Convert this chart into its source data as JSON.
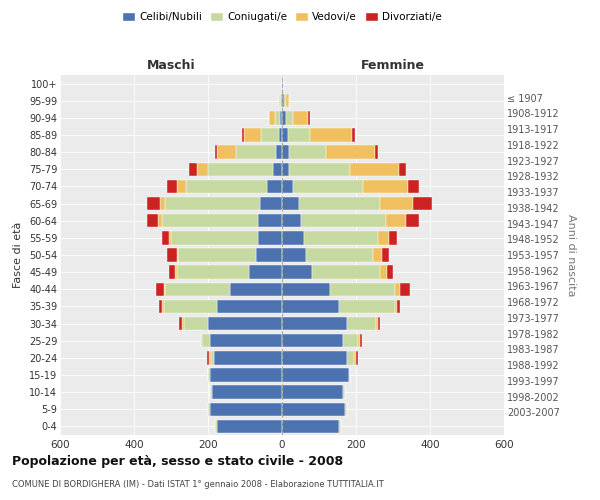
{
  "age_groups": [
    "0-4",
    "5-9",
    "10-14",
    "15-19",
    "20-24",
    "25-29",
    "30-34",
    "35-39",
    "40-44",
    "45-49",
    "50-54",
    "55-59",
    "60-64",
    "65-69",
    "70-74",
    "75-79",
    "80-84",
    "85-89",
    "90-94",
    "95-99",
    "100+"
  ],
  "birth_years": [
    "2003-2007",
    "1998-2002",
    "1993-1997",
    "1988-1992",
    "1983-1987",
    "1978-1982",
    "1973-1977",
    "1968-1972",
    "1963-1967",
    "1958-1962",
    "1953-1957",
    "1948-1952",
    "1943-1947",
    "1938-1942",
    "1933-1937",
    "1928-1932",
    "1923-1927",
    "1918-1922",
    "1913-1917",
    "1908-1912",
    "≤ 1907"
  ],
  "colors": {
    "celibi": "#4c72b0",
    "coniugati": "#c5d9a0",
    "vedovi": "#f0c060",
    "divorziati": "#cc2222"
  },
  "maschi": {
    "celibi": [
      175,
      195,
      190,
      195,
      185,
      195,
      200,
      175,
      140,
      90,
      70,
      65,
      65,
      60,
      40,
      25,
      15,
      8,
      5,
      2,
      0
    ],
    "coniugati": [
      5,
      5,
      5,
      5,
      8,
      20,
      65,
      145,
      175,
      195,
      210,
      235,
      260,
      255,
      220,
      175,
      110,
      50,
      15,
      3,
      0
    ],
    "vedovi": [
      0,
      0,
      0,
      0,
      5,
      5,
      5,
      5,
      5,
      5,
      5,
      5,
      10,
      15,
      25,
      30,
      50,
      45,
      15,
      2,
      0
    ],
    "divorziati": [
      0,
      0,
      0,
      0,
      5,
      0,
      8,
      8,
      20,
      15,
      25,
      20,
      30,
      35,
      25,
      20,
      5,
      5,
      0,
      0,
      0
    ]
  },
  "femmine": {
    "celibi": [
      155,
      170,
      165,
      180,
      175,
      165,
      175,
      155,
      130,
      80,
      65,
      60,
      50,
      45,
      30,
      20,
      20,
      15,
      10,
      5,
      2
    ],
    "coniugati": [
      5,
      5,
      5,
      5,
      20,
      40,
      80,
      150,
      175,
      185,
      180,
      200,
      230,
      220,
      190,
      165,
      100,
      60,
      20,
      5,
      0
    ],
    "vedovi": [
      0,
      0,
      0,
      0,
      5,
      5,
      5,
      5,
      15,
      20,
      25,
      30,
      55,
      90,
      120,
      130,
      130,
      115,
      40,
      10,
      2
    ],
    "divorziati": [
      0,
      0,
      0,
      0,
      5,
      5,
      5,
      8,
      25,
      15,
      20,
      20,
      35,
      50,
      30,
      20,
      10,
      8,
      5,
      0,
      0
    ]
  },
  "title": "Popolazione per età, sesso e stato civile - 2008",
  "subtitle": "COMUNE DI BORDIGHERA (IM) - Dati ISTAT 1° gennaio 2008 - Elaborazione TUTTITALIA.IT",
  "xlabel_left": "Maschi",
  "xlabel_right": "Femmine",
  "ylabel_left": "Fasce di età",
  "ylabel_right": "Anni di nascita",
  "xlim": 600,
  "xticks": [
    -600,
    -400,
    -200,
    0,
    200,
    400,
    600
  ],
  "legend_labels": [
    "Celibi/Nubili",
    "Coniugati/e",
    "Vedovi/e",
    "Divorziati/e"
  ],
  "bg_color": "#ebebeb",
  "bar_height": 0.78
}
